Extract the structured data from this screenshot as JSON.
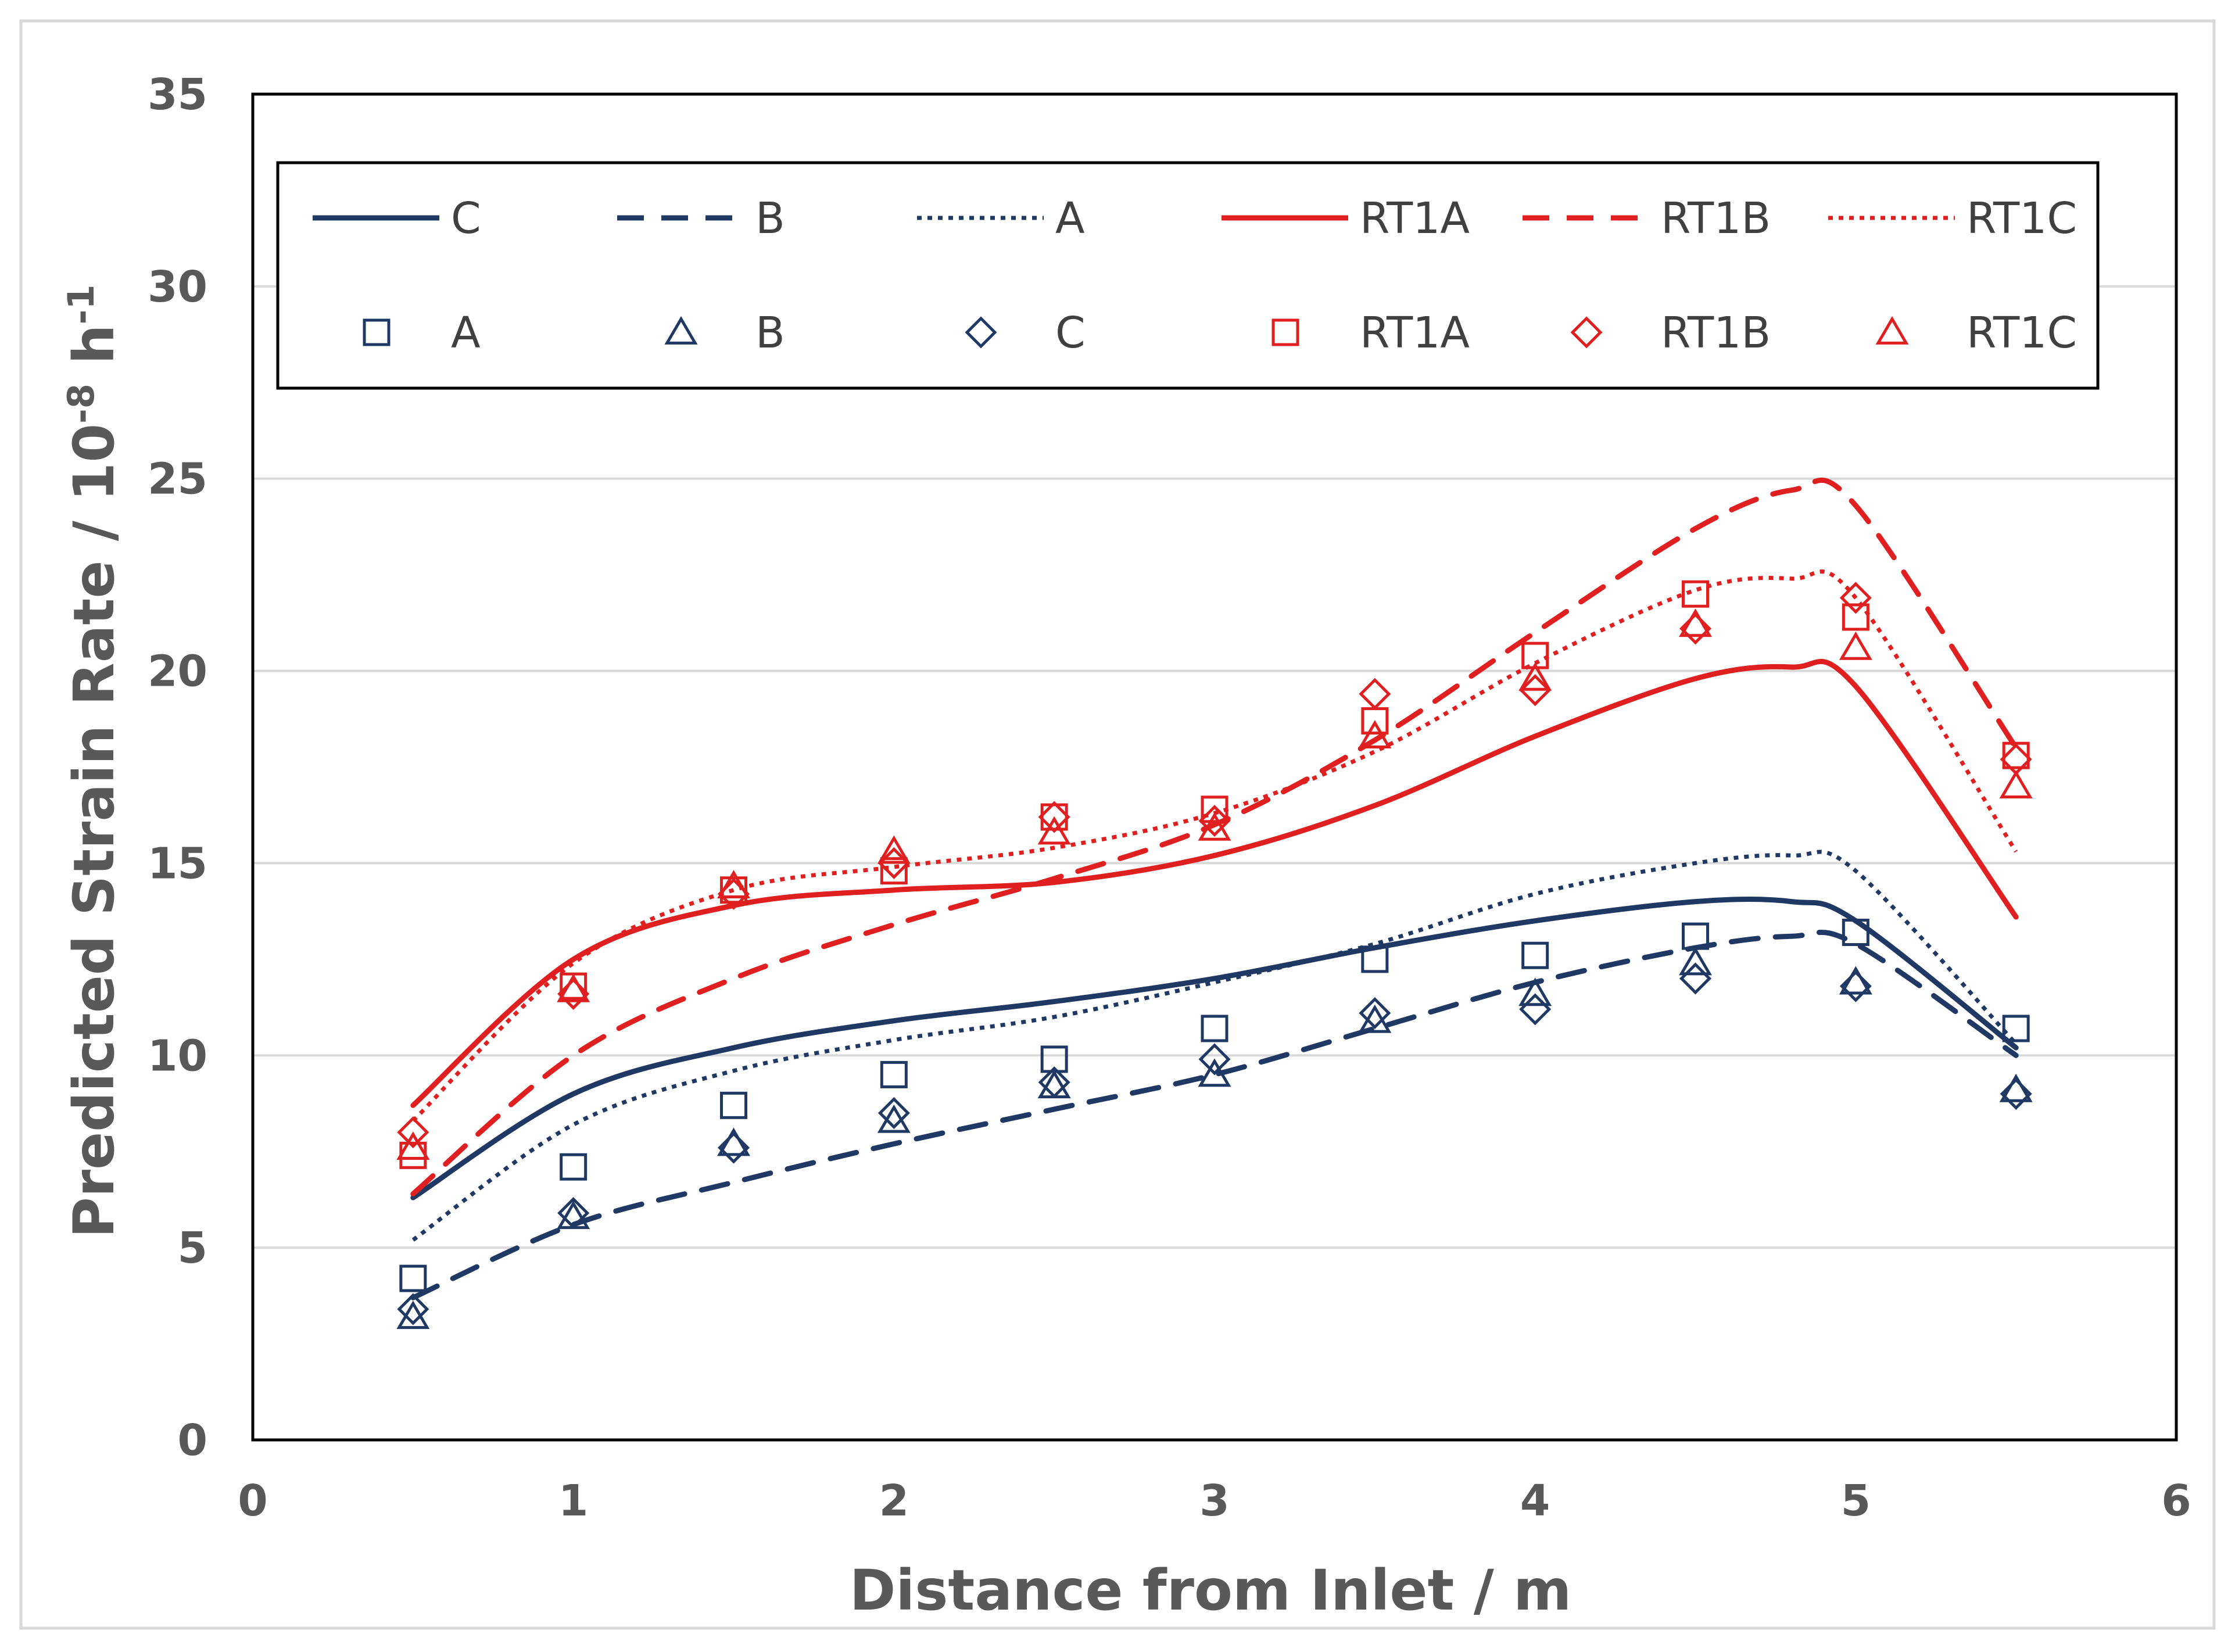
{
  "chart_data": {
    "type": "line",
    "title": "",
    "xlabel": "Distance from Inlet / m",
    "ylabel_main": "Predicted Strain Rate / 10",
    "ylabel_exp1": "-8",
    "ylabel_mid": " h",
    "ylabel_exp2": "-1",
    "xlim": [
      0,
      6
    ],
    "ylim": [
      0,
      35
    ],
    "xticks": [
      0,
      1,
      2,
      3,
      4,
      5,
      6
    ],
    "yticks": [
      0,
      5,
      10,
      15,
      20,
      25,
      30,
      35
    ],
    "grid": "horizontal",
    "legend_position": "top",
    "colors": {
      "navy": "#1f3864",
      "red": "#e02020",
      "grid": "#d9d9d9",
      "axis": "#000000"
    },
    "lines": [
      {
        "name": "C",
        "color": "navy",
        "style": "solid",
        "x": [
          0.5,
          1.0,
          1.5,
          2.0,
          2.5,
          3.0,
          3.5,
          4.0,
          4.5,
          4.8,
          5.0,
          5.5
        ],
        "y": [
          6.3,
          9.0,
          10.2,
          10.9,
          11.4,
          12.0,
          12.8,
          13.5,
          14.0,
          14.0,
          13.5,
          10.2
        ]
      },
      {
        "name": "B",
        "color": "navy",
        "style": "dashed",
        "x": [
          0.5,
          1.0,
          1.5,
          2.0,
          2.5,
          3.0,
          3.5,
          4.0,
          4.5,
          4.8,
          5.0,
          5.5
        ],
        "y": [
          3.7,
          5.6,
          6.7,
          7.7,
          8.6,
          9.5,
          10.7,
          11.9,
          12.8,
          13.1,
          12.9,
          10.0
        ]
      },
      {
        "name": "A",
        "color": "navy",
        "style": "dotted",
        "x": [
          0.5,
          1.0,
          1.5,
          2.0,
          2.5,
          3.0,
          3.5,
          4.0,
          4.5,
          4.8,
          5.0,
          5.5
        ],
        "y": [
          5.2,
          8.2,
          9.6,
          10.4,
          11.0,
          11.9,
          12.9,
          14.2,
          15.0,
          15.2,
          14.8,
          10.3
        ]
      },
      {
        "name": "RT1A",
        "color": "red",
        "style": "solid",
        "x": [
          0.5,
          1.0,
          1.5,
          2.0,
          2.5,
          3.0,
          3.5,
          4.0,
          4.5,
          4.8,
          5.0,
          5.5
        ],
        "y": [
          8.7,
          12.5,
          13.9,
          14.3,
          14.5,
          15.2,
          16.5,
          18.3,
          19.8,
          20.1,
          19.6,
          13.6
        ]
      },
      {
        "name": "RT1B",
        "color": "red",
        "style": "dashed",
        "x": [
          0.5,
          1.0,
          1.5,
          2.0,
          2.5,
          3.0,
          3.5,
          4.0,
          4.5,
          4.8,
          5.0,
          5.5
        ],
        "y": [
          6.4,
          10.0,
          12.0,
          13.4,
          14.6,
          16.0,
          18.2,
          21.0,
          23.7,
          24.7,
          24.3,
          18.0
        ]
      },
      {
        "name": "RT1C",
        "color": "red",
        "style": "dotted",
        "x": [
          0.5,
          1.0,
          1.5,
          2.0,
          2.5,
          3.0,
          3.5,
          4.0,
          4.5,
          4.8,
          5.0,
          5.5
        ],
        "y": [
          8.3,
          12.4,
          14.3,
          14.9,
          15.4,
          16.3,
          17.9,
          20.2,
          22.1,
          22.4,
          21.9,
          15.3
        ]
      }
    ],
    "markers": [
      {
        "name": "A",
        "color": "navy",
        "shape": "square",
        "x": [
          0.5,
          1.0,
          1.5,
          2.0,
          2.5,
          3.0,
          3.5,
          4.0,
          4.5,
          5.0,
          5.5
        ],
        "y": [
          4.2,
          7.1,
          8.7,
          9.5,
          9.9,
          10.7,
          12.5,
          12.6,
          13.1,
          13.2,
          10.7
        ]
      },
      {
        "name": "B",
        "color": "navy",
        "shape": "triangle",
        "x": [
          0.5,
          1.0,
          1.5,
          2.0,
          2.5,
          3.0,
          3.5,
          4.0,
          4.5,
          5.0,
          5.5
        ],
        "y": [
          3.2,
          5.8,
          7.7,
          8.3,
          9.2,
          9.5,
          10.9,
          11.6,
          12.4,
          11.9,
          9.1
        ]
      },
      {
        "name": "C",
        "color": "navy",
        "shape": "diamond",
        "x": [
          0.5,
          1.0,
          1.5,
          2.0,
          2.5,
          3.0,
          3.5,
          4.0,
          4.5,
          5.0,
          5.5
        ],
        "y": [
          3.4,
          5.9,
          7.6,
          8.5,
          9.3,
          9.9,
          11.1,
          11.2,
          12.0,
          11.8,
          9.0
        ]
      },
      {
        "name": "RT1A",
        "color": "red",
        "shape": "square",
        "x": [
          0.5,
          1.0,
          1.5,
          2.0,
          2.5,
          3.0,
          3.5,
          4.0,
          4.5,
          5.0,
          5.5
        ],
        "y": [
          7.4,
          11.8,
          14.3,
          14.8,
          16.2,
          16.4,
          18.7,
          20.4,
          22.0,
          21.4,
          17.8
        ]
      },
      {
        "name": "RT1B",
        "color": "red",
        "shape": "diamond",
        "x": [
          0.5,
          1.0,
          1.5,
          2.0,
          2.5,
          3.0,
          3.5,
          4.0,
          4.5,
          5.0,
          5.5
        ],
        "y": [
          8.0,
          11.6,
          14.2,
          15.0,
          16.2,
          16.1,
          19.4,
          19.5,
          21.1,
          21.9,
          17.7
        ]
      },
      {
        "name": "RT1C",
        "color": "red",
        "shape": "triangle",
        "x": [
          0.5,
          1.0,
          1.5,
          2.0,
          2.5,
          3.0,
          3.5,
          4.0,
          4.5,
          5.0,
          5.5
        ],
        "y": [
          7.6,
          11.7,
          14.4,
          15.3,
          15.8,
          15.9,
          18.3,
          19.8,
          21.2,
          20.6,
          17.0
        ]
      }
    ],
    "legend": {
      "row1": [
        {
          "label": "C",
          "color": "navy",
          "style": "solid"
        },
        {
          "label": "B",
          "color": "navy",
          "style": "dashed"
        },
        {
          "label": "A",
          "color": "navy",
          "style": "dotted"
        },
        {
          "label": "RT1A",
          "color": "red",
          "style": "solid"
        },
        {
          "label": "RT1B",
          "color": "red",
          "style": "dashed"
        },
        {
          "label": "RT1C",
          "color": "red",
          "style": "dotted"
        }
      ],
      "row2": [
        {
          "label": "A",
          "color": "navy",
          "shape": "square"
        },
        {
          "label": "B",
          "color": "navy",
          "shape": "triangle"
        },
        {
          "label": "C",
          "color": "navy",
          "shape": "diamond"
        },
        {
          "label": "RT1A",
          "color": "red",
          "shape": "square"
        },
        {
          "label": "RT1B",
          "color": "red",
          "shape": "diamond"
        },
        {
          "label": "RT1C",
          "color": "red",
          "shape": "triangle"
        }
      ]
    }
  }
}
